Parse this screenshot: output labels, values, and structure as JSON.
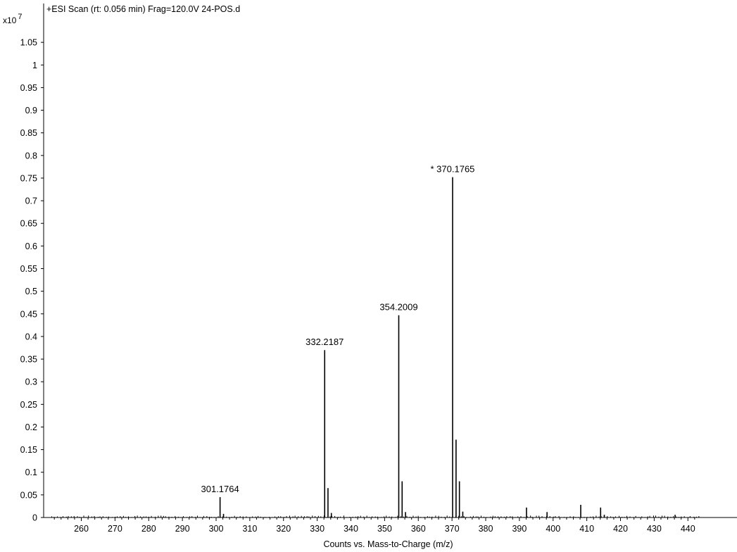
{
  "chart_data": {
    "type": "bar",
    "title": "+ESI Scan (rt: 0.056 min) Frag=120.0V 24-POS.d",
    "xlabel": "Counts vs. Mass-to-Charge (m/z)",
    "ylabel": "",
    "y_scale_label": "x10",
    "y_scale_exponent": "7",
    "xlim": [
      250.5,
      443.5
    ],
    "ylim": [
      0,
      1.1
    ],
    "grid": false,
    "x_ticks": [
      260,
      270,
      280,
      290,
      300,
      310,
      320,
      330,
      340,
      350,
      360,
      370,
      380,
      390,
      400,
      410,
      420,
      430,
      440
    ],
    "y_ticks": [
      "0",
      "0.05",
      "0.1",
      "0.15",
      "0.2",
      "0.25",
      "0.3",
      "0.35",
      "0.4",
      "0.45",
      "0.5",
      "0.55",
      "0.6",
      "0.65",
      "0.7",
      "0.75",
      "0.8",
      "0.85",
      "0.9",
      "0.95",
      "1",
      "1.05"
    ],
    "peaks": [
      {
        "mz": 301.1764,
        "intensity": 0.045
      },
      {
        "mz": 302.2,
        "intensity": 0.008
      },
      {
        "mz": 332.2187,
        "intensity": 0.37
      },
      {
        "mz": 333.2,
        "intensity": 0.065
      },
      {
        "mz": 334.2,
        "intensity": 0.01
      },
      {
        "mz": 354.2009,
        "intensity": 0.447
      },
      {
        "mz": 355.2,
        "intensity": 0.08
      },
      {
        "mz": 356.2,
        "intensity": 0.012
      },
      {
        "mz": 370.1765,
        "intensity": 0.752
      },
      {
        "mz": 371.2,
        "intensity": 0.172
      },
      {
        "mz": 372.2,
        "intensity": 0.08
      },
      {
        "mz": 373.2,
        "intensity": 0.013
      },
      {
        "mz": 392.1,
        "intensity": 0.022
      },
      {
        "mz": 398.2,
        "intensity": 0.012
      },
      {
        "mz": 408.2,
        "intensity": 0.028
      },
      {
        "mz": 414.1,
        "intensity": 0.022
      },
      {
        "mz": 415.2,
        "intensity": 0.006
      },
      {
        "mz": 436.2,
        "intensity": 0.006
      }
    ],
    "peak_labels": [
      {
        "text": "301.1764",
        "mz": 301.1764,
        "intensity": 0.045
      },
      {
        "text": "332.2187",
        "mz": 332.2187,
        "intensity": 0.37
      },
      {
        "text": "354.2009",
        "mz": 354.2009,
        "intensity": 0.447
      },
      {
        "text": "* 370.1765",
        "mz": 370.1765,
        "intensity": 0.752
      }
    ]
  }
}
